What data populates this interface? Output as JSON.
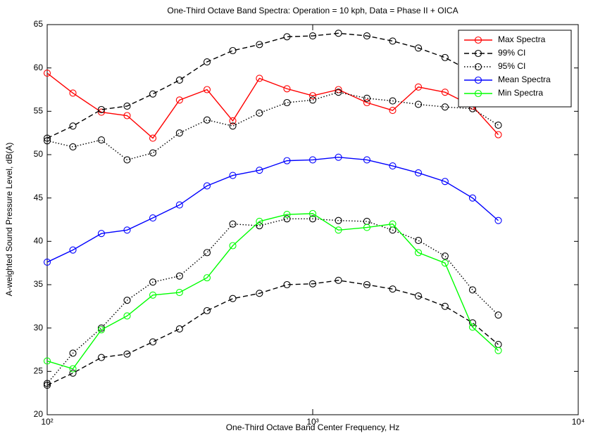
{
  "chart_data": {
    "type": "line",
    "title": "One-Third Octave Band Spectra: Operation = 10 kph, Data = Phase II + OICA",
    "xlabel": "One-Third Octave Band Center Frequency, Hz",
    "ylabel": "A-weighted Sound Pressure Level, dB(A)",
    "xscale": "log",
    "x": [
      100,
      125,
      160,
      200,
      250,
      315,
      400,
      500,
      630,
      800,
      1000,
      1250,
      1600,
      2000,
      2500,
      3150,
      4000,
      5000
    ],
    "series": [
      {
        "name": "Max Spectra",
        "color": "#ff0000",
        "dash": "solid",
        "values": [
          59.4,
          57.1,
          54.9,
          54.5,
          51.9,
          56.3,
          57.5,
          53.9,
          58.8,
          57.6,
          56.8,
          57.5,
          56.0,
          55.1,
          57.8,
          57.2,
          55.6,
          52.3
        ]
      },
      {
        "name": "99% CI",
        "color": "#000000",
        "dash": "dashed",
        "values": [
          51.9,
          53.3,
          55.2,
          55.6,
          57.0,
          58.6,
          60.7,
          62.0,
          62.7,
          63.6,
          63.7,
          64.0,
          63.7,
          63.1,
          62.3,
          61.2,
          59.5,
          56.5
        ],
        "lower": [
          23.4,
          24.8,
          26.6,
          27.0,
          28.4,
          29.9,
          32.0,
          33.4,
          34.0,
          35.0,
          35.1,
          35.5,
          35.0,
          34.5,
          33.7,
          32.5,
          30.6,
          28.1
        ]
      },
      {
        "name": "95% CI",
        "color": "#000000",
        "dash": "dotted",
        "values": [
          51.6,
          50.9,
          51.7,
          49.4,
          50.2,
          52.5,
          54.0,
          53.3,
          54.8,
          56.0,
          56.3,
          57.2,
          56.5,
          56.2,
          55.8,
          55.5,
          55.3,
          53.4
        ],
        "lower": [
          23.6,
          27.1,
          30.0,
          33.2,
          35.3,
          36.0,
          38.7,
          42.0,
          41.8,
          42.6,
          42.6,
          42.4,
          42.3,
          41.3,
          40.1,
          38.3,
          34.4,
          31.5
        ]
      },
      {
        "name": "Mean Spectra",
        "color": "#0000ff",
        "dash": "solid",
        "values": [
          37.6,
          39.0,
          40.9,
          41.3,
          42.7,
          44.2,
          46.4,
          47.6,
          48.2,
          49.3,
          49.4,
          49.7,
          49.4,
          48.7,
          47.9,
          46.9,
          45.0,
          42.4
        ]
      },
      {
        "name": "Min Spectra",
        "color": "#00ff00",
        "dash": "solid",
        "values": [
          26.2,
          25.3,
          29.8,
          31.4,
          33.8,
          34.1,
          35.8,
          39.5,
          42.3,
          43.1,
          43.2,
          41.3,
          41.6,
          42.0,
          38.7,
          37.5,
          30.1,
          27.4
        ]
      }
    ],
    "xlim": [
      100,
      10000
    ],
    "xticks": [
      {
        "value": 100,
        "label": "10²"
      },
      {
        "value": 1000,
        "label": "10³"
      },
      {
        "value": 10000,
        "label": "10⁴"
      }
    ],
    "ylim": [
      20,
      65
    ],
    "yticks": [
      20,
      25,
      30,
      35,
      40,
      45,
      50,
      55,
      60,
      65
    ],
    "grid": false,
    "legend": "upper right"
  }
}
